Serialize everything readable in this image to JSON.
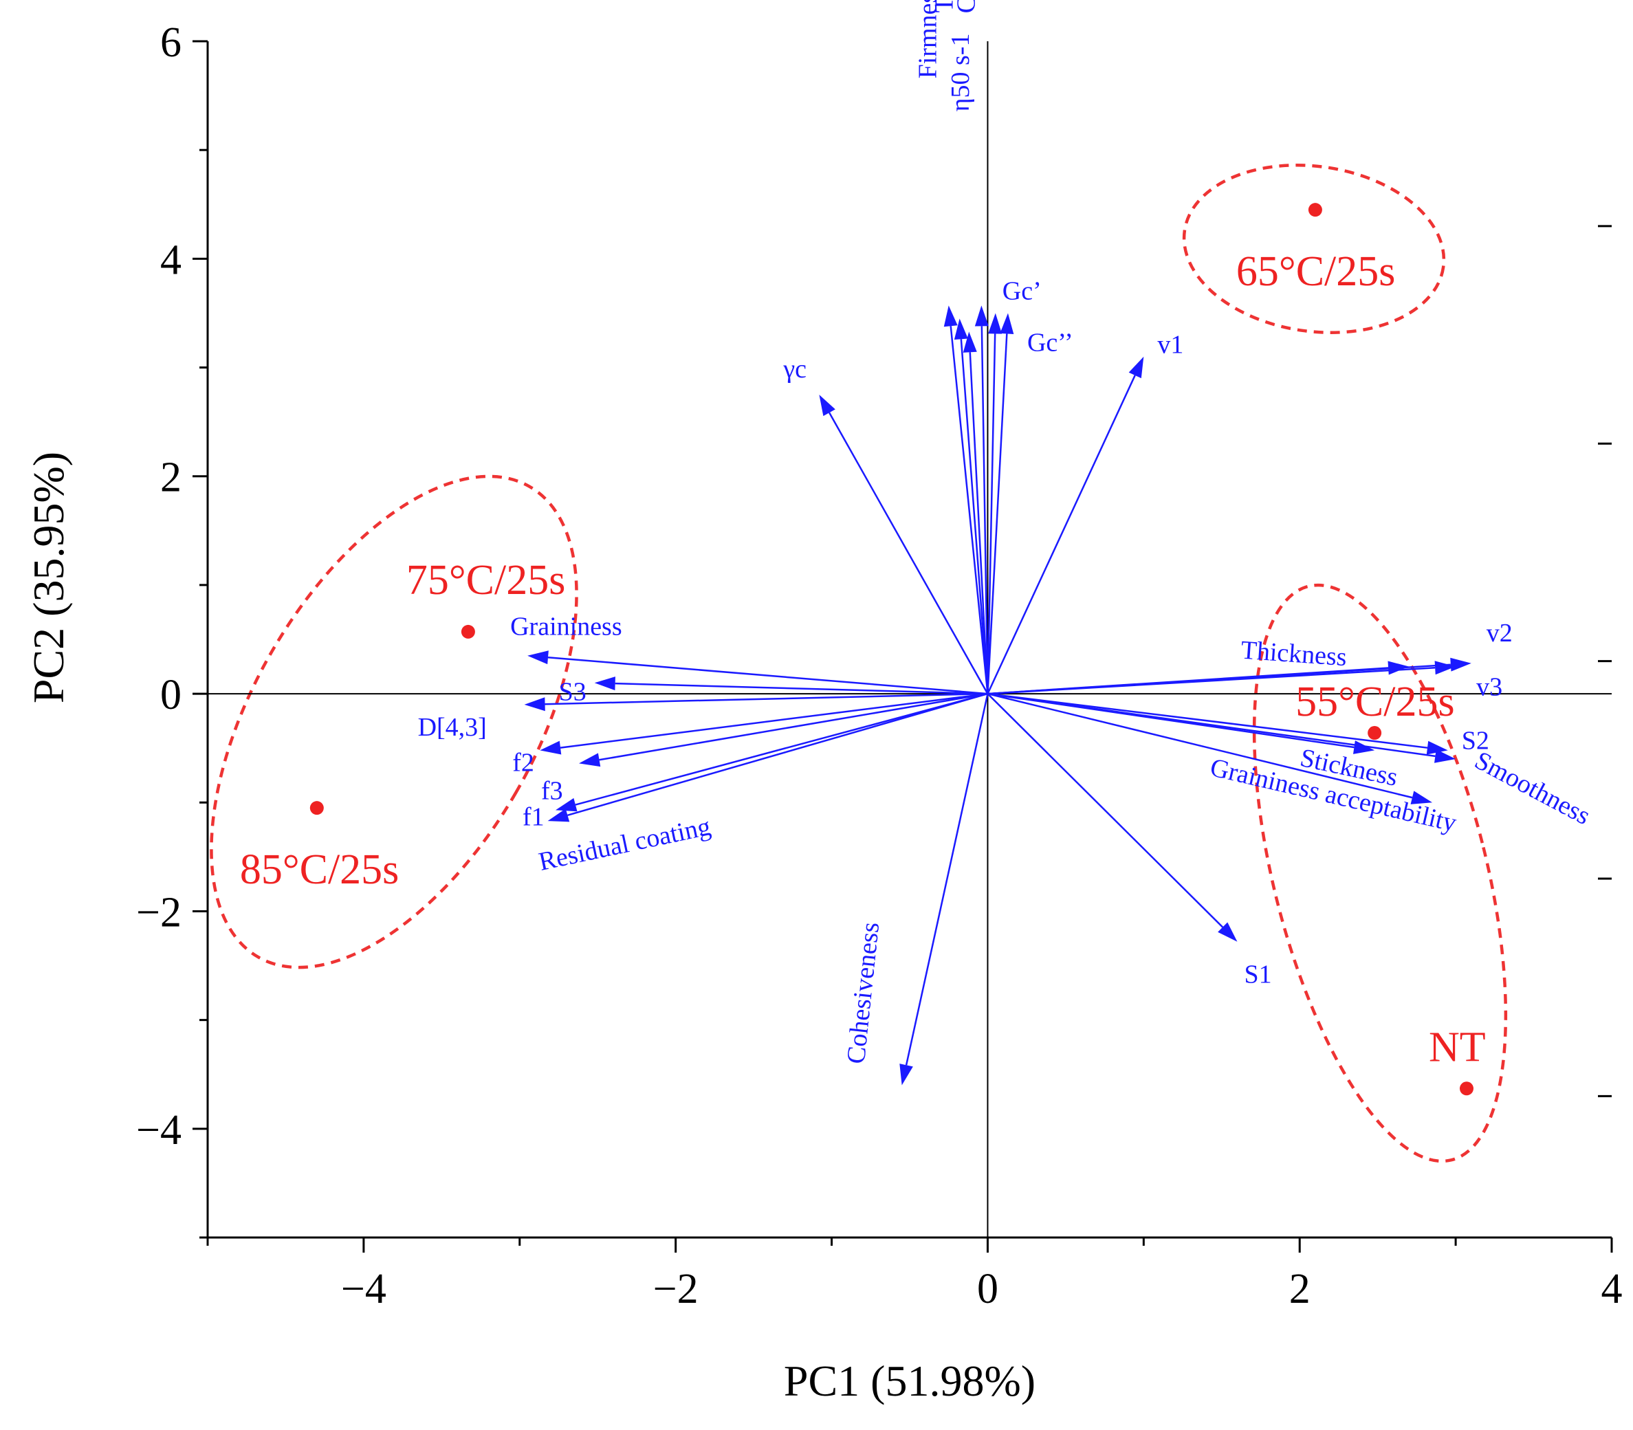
{
  "chart_data": {
    "type": "scatter",
    "subtype": "pca-biplot",
    "xlabel": "PC1 (51.98%)",
    "ylabel": "PC2 (35.95%)",
    "xlim": [
      -5,
      4
    ],
    "ylim": [
      -5,
      6
    ],
    "xticks": [
      -4,
      -2,
      0,
      2,
      4
    ],
    "yticks": [
      -4,
      -2,
      0,
      2,
      4,
      6
    ],
    "xtick_labels": [
      "−4",
      "−2",
      "0",
      "2",
      "4"
    ],
    "ytick_labels": [
      "−4",
      "−2",
      "0",
      "2",
      "4",
      "6"
    ],
    "zero_lines": true,
    "colors": {
      "loadings": "#1a1aff",
      "samples": "#ee2222"
    },
    "samples": [
      {
        "label": "65°C/25s",
        "x": 2.1,
        "y": 4.45
      },
      {
        "label": "75°C/25s",
        "x": -3.33,
        "y": 0.57
      },
      {
        "label": "85°C/25s",
        "x": -4.3,
        "y": -1.05
      },
      {
        "label": "55°C/25s",
        "x": 2.48,
        "y": -0.36
      },
      {
        "label": "NT",
        "x": 3.07,
        "y": -3.63
      }
    ],
    "loadings": [
      {
        "label": "Firmness",
        "x": -0.25,
        "y": 3.57
      },
      {
        "label": "Thixotropic loop",
        "x": -0.18,
        "y": 3.45
      },
      {
        "label": "η50 s-1",
        "x": -0.12,
        "y": 3.33
      },
      {
        "label": "Consistency",
        "x": -0.04,
        "y": 3.57
      },
      {
        "label": "Gc’",
        "x": 0.05,
        "y": 3.5
      },
      {
        "label": "Gc’’",
        "x": 0.13,
        "y": 3.5
      },
      {
        "label": "γc",
        "x": -1.08,
        "y": 2.75
      },
      {
        "label": "v1",
        "x": 1.0,
        "y": 3.1
      },
      {
        "label": "Graininess",
        "x": -2.95,
        "y": 0.35
      },
      {
        "label": "S3",
        "x": -2.52,
        "y": 0.1
      },
      {
        "label": "D[4,3]",
        "x": -2.97,
        "y": -0.1
      },
      {
        "label": "f2",
        "x": -2.87,
        "y": -0.52
      },
      {
        "label": "f3",
        "x": -2.62,
        "y": -0.64
      },
      {
        "label": "f1",
        "x": -2.77,
        "y": -1.07
      },
      {
        "label": "Residual coating",
        "x": -2.82,
        "y": -1.17
      },
      {
        "label": "Cohesiveness",
        "x": -0.55,
        "y": -3.6
      },
      {
        "label": "S1",
        "x": 1.6,
        "y": -2.28
      },
      {
        "label": "Thickness",
        "x": 2.7,
        "y": 0.25
      },
      {
        "label": "v2",
        "x": 3.1,
        "y": 0.28
      },
      {
        "label": "v3",
        "x": 3.0,
        "y": 0.25
      },
      {
        "label": "S2",
        "x": 2.95,
        "y": -0.52
      },
      {
        "label": "Smoothness",
        "x": 3.0,
        "y": -0.6
      },
      {
        "label": "Stickness",
        "x": 2.48,
        "y": -0.52
      },
      {
        "label": "Graininess acceptability",
        "x": 2.85,
        "y": -1.0
      }
    ]
  }
}
